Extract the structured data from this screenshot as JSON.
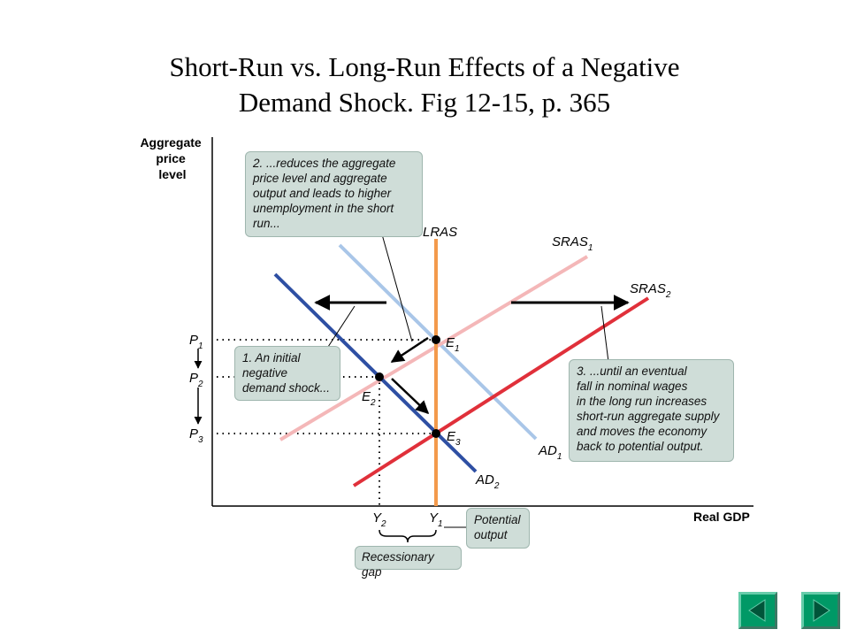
{
  "slide": {
    "title_line1": "Short-Run vs. Long-Run Effects of a Negative",
    "title_line2": "Demand Shock. Fig 12-15, p. 365"
  },
  "axes": {
    "y_label_line1": "Aggregate",
    "y_label_line2": "price",
    "y_label_line3": "level",
    "x_label": "Real GDP"
  },
  "curves": {
    "lras": "LRAS",
    "sras1": "SRAS",
    "sras1_sub": "1",
    "sras2": "SRAS",
    "sras2_sub": "2",
    "ad1": "AD",
    "ad1_sub": "1",
    "ad2": "AD",
    "ad2_sub": "2"
  },
  "points": {
    "e1": "E",
    "e1_sub": "1",
    "e2": "E",
    "e2_sub": "2",
    "e3": "E",
    "e3_sub": "3"
  },
  "ticks": {
    "p1": "P",
    "p1_sub": "1",
    "p2": "P",
    "p2_sub": "2",
    "p3": "P",
    "p3_sub": "3",
    "y2": "Y",
    "y2_sub": "2",
    "y1": "Y",
    "y1_sub": "1"
  },
  "callouts": {
    "step1_l1": "1. An initial",
    "step1_l2": "negative",
    "step1_l3": "demand shock...",
    "step2_l1": "2. ...reduces the aggregate",
    "step2_l2": "price level and aggregate",
    "step2_l3": "output and leads to higher",
    "step2_l4": "unemployment in the short",
    "step2_l5": "run...",
    "step3_l1": "3. ...until an eventual",
    "step3_l2": "fall in nominal wages",
    "step3_l3": "in the long run increases",
    "step3_l4": "short-run aggregate supply",
    "step3_l5": "and moves the economy",
    "step3_l6": "back to potential output.",
    "potential_l1": "Potential",
    "potential_l2": "output",
    "gap": "Recessionary gap"
  },
  "colors": {
    "ad1": "#a9c6e8",
    "ad2": "#2e4fa3",
    "sras1": "#f4b7b8",
    "sras2": "#e0303a",
    "lras": "#f39a4c",
    "callout_bg": "#cfddd8",
    "nav_button": "#009966"
  },
  "nav": {
    "prev_icon": "triangle-left-icon",
    "next_icon": "triangle-right-icon"
  }
}
